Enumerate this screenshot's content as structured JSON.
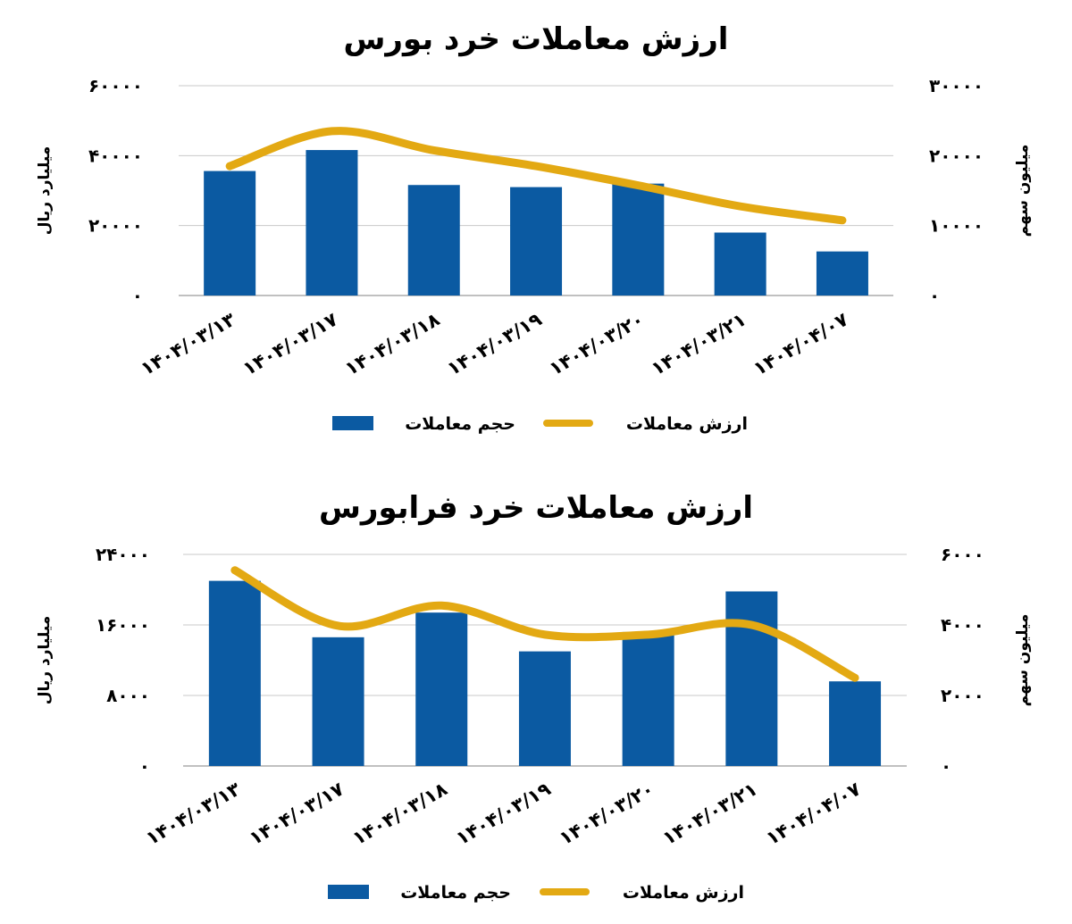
{
  "colors": {
    "bar": "#0b5aa2",
    "line": "#e3a913",
    "grid": "#c8c8c8"
  },
  "chart_data": [
    {
      "type": "bar",
      "title": "ارزش معاملات خرد بورس",
      "categories": [
        "1404/03/13",
        "1404/03/17",
        "1404/03/18",
        "1404/03/19",
        "1404/03/20",
        "1404/03/21",
        "1404/04/07"
      ],
      "category_labels": [
        "۱۴۰۴/۰۳/۱۳",
        "۱۴۰۴/۰۳/۱۷",
        "۱۴۰۴/۰۳/۱۸",
        "۱۴۰۴/۰۳/۱۹",
        "۱۴۰۴/۰۳/۲۰",
        "۱۴۰۴/۰۳/۲۱",
        "۱۴۰۴/۰۴/۰۷"
      ],
      "ylabel_left": "میلیارد ریال",
      "ylabel_right": "میلیون سهم",
      "ylim_left": [
        0,
        60000
      ],
      "ylim_right": [
        0,
        30000
      ],
      "yticks_left": [
        "۰",
        "۲۰۰۰۰",
        "۴۰۰۰۰",
        "۶۰۰۰۰"
      ],
      "yticks_right": [
        "۰",
        "۱۰۰۰۰",
        "۲۰۰۰۰",
        "۳۰۰۰۰"
      ],
      "grid": true,
      "legend_position": "bottom",
      "series": [
        {
          "name": "حجم معاملات",
          "type": "bar",
          "axis": "right",
          "values": [
            17800,
            20800,
            15800,
            15500,
            16000,
            9000,
            6300
          ]
        },
        {
          "name": "ارزش معاملات",
          "type": "line",
          "axis": "left",
          "values": [
            37000,
            47000,
            41500,
            37000,
            31500,
            25500,
            21500
          ]
        }
      ]
    },
    {
      "type": "bar",
      "title": "ارزش معاملات خرد فرابورس",
      "categories": [
        "1404/03/13",
        "1404/03/17",
        "1404/03/18",
        "1404/03/19",
        "1404/03/20",
        "1404/03/21",
        "1404/04/07"
      ],
      "category_labels": [
        "۱۴۰۴/۰۳/۱۳",
        "۱۴۰۴/۰۳/۱۷",
        "۱۴۰۴/۰۳/۱۸",
        "۱۴۰۴/۰۳/۱۹",
        "۱۴۰۴/۰۳/۲۰",
        "۱۴۰۴/۰۳/۲۱",
        "۱۴۰۴/۰۴/۰۷"
      ],
      "ylabel_left": "میلیارد ریال",
      "ylabel_right": "میلیون سهم",
      "ylim_left": [
        0,
        24000
      ],
      "ylim_right": [
        0,
        6000
      ],
      "yticks_left": [
        "۰",
        "۸۰۰۰",
        "۱۶۰۰۰",
        "۲۴۰۰۰"
      ],
      "yticks_right": [
        "۰",
        "۲۰۰۰",
        "۴۰۰۰",
        "۶۰۰۰"
      ],
      "grid": true,
      "legend_position": "bottom",
      "series": [
        {
          "name": "حجم معاملات",
          "type": "bar",
          "axis": "right",
          "values": [
            5250,
            3650,
            4350,
            3250,
            3800,
            4950,
            2400
          ]
        },
        {
          "name": "ارزش معاملات",
          "type": "line",
          "axis": "left",
          "values": [
            22200,
            15900,
            18200,
            14900,
            14900,
            16000,
            10000
          ]
        }
      ]
    }
  ]
}
